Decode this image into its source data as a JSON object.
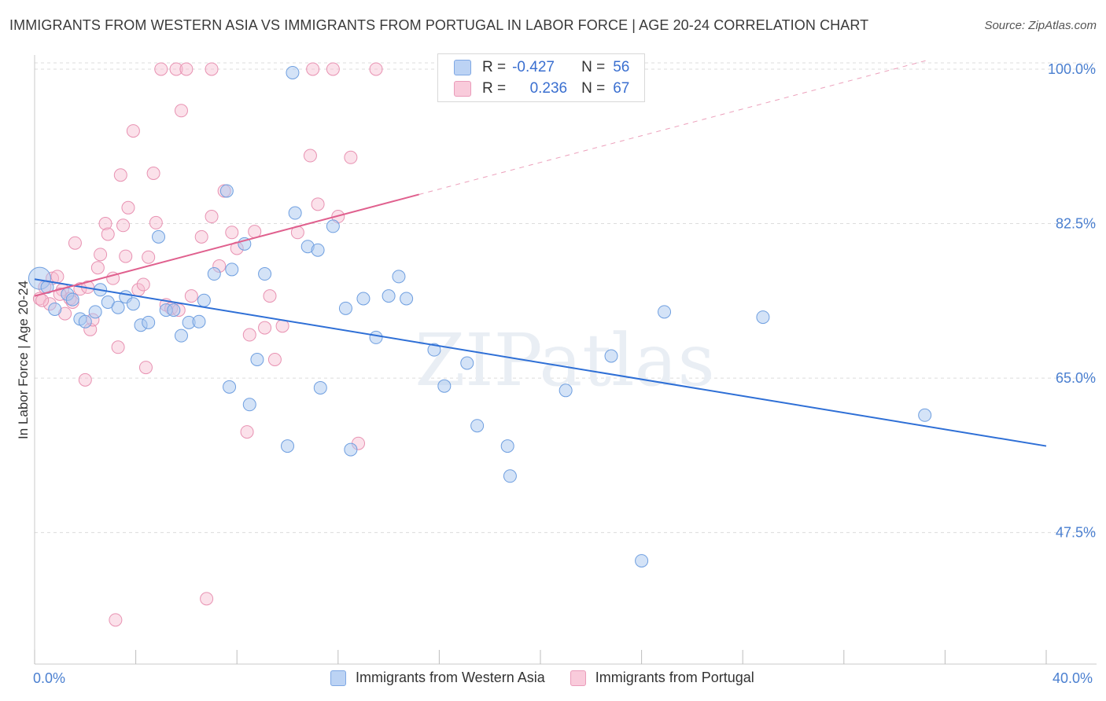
{
  "title": "IMMIGRANTS FROM WESTERN ASIA VS IMMIGRANTS FROM PORTUGAL IN LABOR FORCE | AGE 20-24 CORRELATION CHART",
  "source": "Source: ZipAtlas.com",
  "watermark": "ZIPatlas",
  "colors": {
    "blue_fill": "#a9c7f0",
    "blue_stroke": "#6f9fe0",
    "blue_line": "#2e6fd6",
    "pink_fill": "#f6bcd0",
    "pink_stroke": "#e892b2",
    "pink_line": "#e0608e",
    "tick_label": "#4a7fd0",
    "grid": "#dcdcdc"
  },
  "stats": {
    "blue": {
      "r_label": "R =",
      "r_value": "-0.427",
      "n_label": "N =",
      "n_value": "56"
    },
    "pink": {
      "r_label": "R =",
      "r_value": "0.236",
      "n_label": "N =",
      "n_value": "67"
    }
  },
  "chart_data": {
    "type": "scatter",
    "title": "IMMIGRANTS FROM WESTERN ASIA VS IMMIGRANTS FROM PORTUGAL IN LABOR FORCE | AGE 20-24 CORRELATION CHART",
    "xlabel": "",
    "ylabel": "In Labor Force | Age 20-24",
    "x_tick_labels": [
      "0.0%",
      "40.0%"
    ],
    "y_tick_labels": [
      "100.0%",
      "82.5%",
      "65.0%",
      "47.5%"
    ],
    "y_ticks": [
      100.0,
      82.5,
      65.0,
      47.5
    ],
    "xlim": [
      0,
      40
    ],
    "ylim": [
      32.6,
      101.6
    ],
    "grid": true,
    "legend_position": "bottom",
    "series": [
      {
        "name": "Immigrants from Western Asia",
        "color": "#a9c7f0",
        "trend": {
          "x": [
            0,
            40
          ],
          "y": [
            76.2,
            57.3
          ]
        },
        "points": [
          [
            0.2,
            76.3
          ],
          [
            0.5,
            75.3
          ],
          [
            0.8,
            72.8
          ],
          [
            1.3,
            74.5
          ],
          [
            1.5,
            73.9
          ],
          [
            1.8,
            71.7
          ],
          [
            2.0,
            71.4
          ],
          [
            2.4,
            72.5
          ],
          [
            2.6,
            75.0
          ],
          [
            2.9,
            73.6
          ],
          [
            3.3,
            73.0
          ],
          [
            3.6,
            74.2
          ],
          [
            3.9,
            73.4
          ],
          [
            4.2,
            71.0
          ],
          [
            4.5,
            71.3
          ],
          [
            4.9,
            81.0
          ],
          [
            5.2,
            72.7
          ],
          [
            5.5,
            72.7
          ],
          [
            5.8,
            69.8
          ],
          [
            6.1,
            71.3
          ],
          [
            6.5,
            71.4
          ],
          [
            6.7,
            73.8
          ],
          [
            7.1,
            76.8
          ],
          [
            7.6,
            86.2
          ],
          [
            7.7,
            64.0
          ],
          [
            7.8,
            77.3
          ],
          [
            8.3,
            80.2
          ],
          [
            8.5,
            62.0
          ],
          [
            8.8,
            67.1
          ],
          [
            9.1,
            76.8
          ],
          [
            10.0,
            57.3
          ],
          [
            10.2,
            99.6
          ],
          [
            10.3,
            83.7
          ],
          [
            10.8,
            79.9
          ],
          [
            11.2,
            79.5
          ],
          [
            11.3,
            63.9
          ],
          [
            11.8,
            82.2
          ],
          [
            12.3,
            72.9
          ],
          [
            12.5,
            56.9
          ],
          [
            13.0,
            74.0
          ],
          [
            13.5,
            69.6
          ],
          [
            14.0,
            74.3
          ],
          [
            14.4,
            76.5
          ],
          [
            14.7,
            74.0
          ],
          [
            15.8,
            68.2
          ],
          [
            16.2,
            64.1
          ],
          [
            17.1,
            66.7
          ],
          [
            17.5,
            59.6
          ],
          [
            18.7,
            57.3
          ],
          [
            18.8,
            53.9
          ],
          [
            21.0,
            63.6
          ],
          [
            22.8,
            67.5
          ],
          [
            24.9,
            72.5
          ],
          [
            28.8,
            71.9
          ],
          [
            35.2,
            60.8
          ],
          [
            24.0,
            44.3
          ]
        ]
      },
      {
        "name": "Immigrants from Portugal",
        "color": "#f6bcd0",
        "trend": {
          "x": [
            0,
            15.2
          ],
          "y": [
            74.3,
            85.8
          ]
        },
        "points": [
          [
            0.2,
            74.0
          ],
          [
            0.4,
            75.3
          ],
          [
            0.6,
            73.4
          ],
          [
            0.7,
            76.3
          ],
          [
            0.9,
            76.5
          ],
          [
            1.1,
            75.0
          ],
          [
            1.2,
            72.3
          ],
          [
            1.4,
            74.0
          ],
          [
            1.6,
            80.3
          ],
          [
            1.8,
            75.1
          ],
          [
            2.0,
            64.8
          ],
          [
            2.2,
            70.5
          ],
          [
            2.3,
            71.6
          ],
          [
            2.5,
            77.5
          ],
          [
            2.6,
            79.0
          ],
          [
            2.8,
            82.5
          ],
          [
            2.9,
            81.3
          ],
          [
            3.1,
            76.3
          ],
          [
            3.3,
            68.5
          ],
          [
            3.4,
            88.0
          ],
          [
            3.5,
            82.3
          ],
          [
            3.6,
            78.8
          ],
          [
            3.7,
            84.3
          ],
          [
            3.9,
            93.0
          ],
          [
            4.1,
            75.0
          ],
          [
            4.3,
            75.6
          ],
          [
            4.4,
            66.2
          ],
          [
            4.5,
            78.7
          ],
          [
            4.7,
            88.2
          ],
          [
            4.8,
            82.6
          ],
          [
            5.0,
            100.0
          ],
          [
            5.2,
            73.3
          ],
          [
            5.4,
            72.9
          ],
          [
            5.6,
            100.0
          ],
          [
            5.8,
            95.3
          ],
          [
            6.0,
            100.0
          ],
          [
            6.2,
            74.3
          ],
          [
            6.6,
            81.0
          ],
          [
            6.8,
            40.0
          ],
          [
            7.0,
            100.0
          ],
          [
            7.0,
            83.3
          ],
          [
            7.3,
            77.7
          ],
          [
            7.5,
            86.2
          ],
          [
            7.8,
            81.5
          ],
          [
            8.0,
            79.7
          ],
          [
            8.4,
            58.9
          ],
          [
            8.5,
            69.9
          ],
          [
            8.7,
            81.6
          ],
          [
            9.1,
            70.7
          ],
          [
            9.3,
            74.3
          ],
          [
            9.5,
            67.1
          ],
          [
            9.8,
            70.9
          ],
          [
            10.4,
            81.5
          ],
          [
            10.9,
            90.2
          ],
          [
            11.0,
            100.0
          ],
          [
            11.2,
            84.7
          ],
          [
            11.8,
            100.0
          ],
          [
            12.0,
            83.3
          ],
          [
            12.5,
            90.0
          ],
          [
            12.8,
            57.6
          ],
          [
            13.5,
            100.0
          ],
          [
            5.7,
            72.7
          ],
          [
            3.2,
            37.6
          ],
          [
            1.0,
            74.5
          ],
          [
            2.1,
            75.3
          ],
          [
            1.5,
            73.6
          ],
          [
            0.3,
            73.8
          ]
        ]
      }
    ]
  },
  "ylabel": "In Labor Force | Age 20-24",
  "x_min_label": "0.0%",
  "x_max_label": "40.0%",
  "legend": [
    {
      "label": "Immigrants from Western Asia"
    },
    {
      "label": "Immigrants from Portugal"
    }
  ]
}
